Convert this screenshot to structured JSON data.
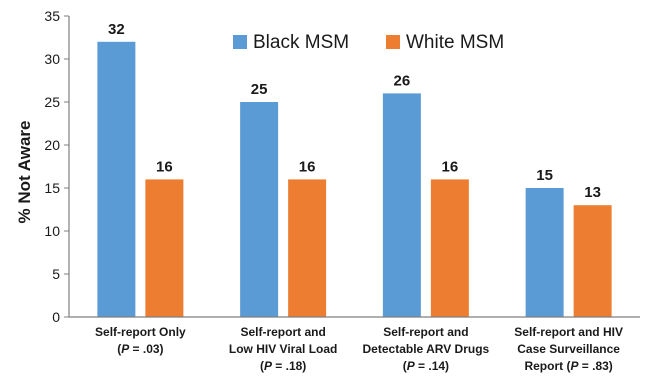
{
  "chart_data": {
    "type": "bar",
    "title": "",
    "ylabel": "% Not Aware",
    "xlabel": "",
    "ylim": [
      0,
      35
    ],
    "yticks": [
      0,
      5,
      10,
      15,
      20,
      25,
      30,
      35
    ],
    "grid": false,
    "legend_position": "top-center",
    "categories": [
      {
        "lines": [
          "Self-report Only"
        ],
        "p_value": ".03"
      },
      {
        "lines": [
          "Self-report and",
          "Low HIV Viral Load"
        ],
        "p_value": ".18"
      },
      {
        "lines": [
          "Self-report and",
          "Detectable ARV Drugs"
        ],
        "p_value": ".14"
      },
      {
        "lines": [
          "Self-report and HIV",
          "Case Surveillance"
        ],
        "report_prefix": "Report",
        "p_value": ".83"
      }
    ],
    "series": [
      {
        "name": "Black MSM",
        "color": "#5b9bd5",
        "values": [
          32,
          25,
          26,
          15
        ]
      },
      {
        "name": "White MSM",
        "color": "#ed7d31",
        "values": [
          16,
          16,
          16,
          13
        ]
      }
    ]
  }
}
